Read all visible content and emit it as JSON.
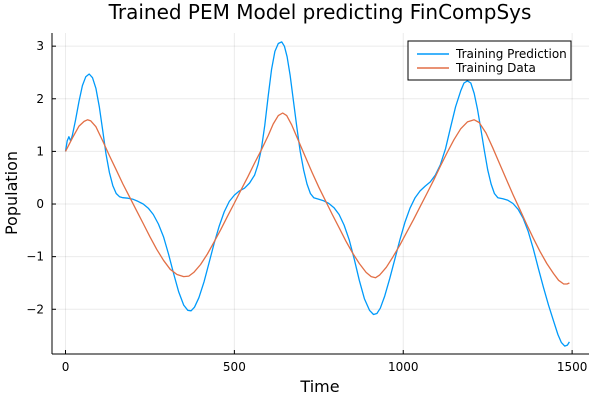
{
  "chart_data": {
    "type": "line",
    "title": "Trained PEM Model predicting FinCompSys",
    "xlabel": "Time",
    "ylabel": "Population",
    "xlim": [
      -40,
      1550
    ],
    "ylim": [
      -2.85,
      3.25
    ],
    "xticks": [
      0,
      500,
      1000,
      1500
    ],
    "xtick_labels": [
      "0",
      "500",
      "1000",
      "1500"
    ],
    "yticks": [
      -2,
      -1,
      0,
      1,
      2,
      3
    ],
    "ytick_labels": [
      "−2",
      "−1",
      "0",
      "1",
      "2",
      "3"
    ],
    "grid": true,
    "legend_position": "top-right",
    "series": [
      {
        "name": "Training Prediction",
        "color": "#009AFA",
        "points": [
          [
            0,
            1.0
          ],
          [
            5,
            1.2
          ],
          [
            10,
            1.28
          ],
          [
            15,
            1.2
          ],
          [
            20,
            1.3
          ],
          [
            30,
            1.6
          ],
          [
            40,
            1.95
          ],
          [
            50,
            2.25
          ],
          [
            60,
            2.42
          ],
          [
            70,
            2.47
          ],
          [
            80,
            2.4
          ],
          [
            90,
            2.2
          ],
          [
            100,
            1.85
          ],
          [
            110,
            1.4
          ],
          [
            120,
            0.95
          ],
          [
            130,
            0.6
          ],
          [
            140,
            0.35
          ],
          [
            150,
            0.2
          ],
          [
            160,
            0.14
          ],
          [
            170,
            0.12
          ],
          [
            185,
            0.11
          ],
          [
            200,
            0.09
          ],
          [
            215,
            0.05
          ],
          [
            230,
            0.0
          ],
          [
            245,
            -0.08
          ],
          [
            260,
            -0.2
          ],
          [
            275,
            -0.38
          ],
          [
            290,
            -0.62
          ],
          [
            305,
            -0.95
          ],
          [
            320,
            -1.32
          ],
          [
            335,
            -1.67
          ],
          [
            350,
            -1.92
          ],
          [
            362,
            -2.02
          ],
          [
            372,
            -2.03
          ],
          [
            382,
            -1.96
          ],
          [
            395,
            -1.78
          ],
          [
            410,
            -1.48
          ],
          [
            425,
            -1.12
          ],
          [
            440,
            -0.75
          ],
          [
            455,
            -0.42
          ],
          [
            470,
            -0.15
          ],
          [
            485,
            0.05
          ],
          [
            500,
            0.17
          ],
          [
            515,
            0.25
          ],
          [
            530,
            0.3
          ],
          [
            545,
            0.4
          ],
          [
            560,
            0.55
          ],
          [
            570,
            0.75
          ],
          [
            580,
            1.05
          ],
          [
            590,
            1.5
          ],
          [
            600,
            2.05
          ],
          [
            610,
            2.55
          ],
          [
            620,
            2.9
          ],
          [
            630,
            3.05
          ],
          [
            640,
            3.08
          ],
          [
            648,
            3.0
          ],
          [
            656,
            2.8
          ],
          [
            665,
            2.45
          ],
          [
            675,
            1.95
          ],
          [
            685,
            1.45
          ],
          [
            695,
            1.0
          ],
          [
            705,
            0.65
          ],
          [
            715,
            0.38
          ],
          [
            725,
            0.2
          ],
          [
            735,
            0.12
          ],
          [
            750,
            0.09
          ],
          [
            765,
            0.06
          ],
          [
            780,
            0.01
          ],
          [
            795,
            -0.07
          ],
          [
            810,
            -0.2
          ],
          [
            825,
            -0.4
          ],
          [
            840,
            -0.68
          ],
          [
            855,
            -1.05
          ],
          [
            870,
            -1.45
          ],
          [
            885,
            -1.8
          ],
          [
            900,
            -2.02
          ],
          [
            912,
            -2.1
          ],
          [
            922,
            -2.08
          ],
          [
            932,
            -1.98
          ],
          [
            945,
            -1.75
          ],
          [
            960,
            -1.42
          ],
          [
            975,
            -1.05
          ],
          [
            990,
            -0.68
          ],
          [
            1005,
            -0.35
          ],
          [
            1020,
            -0.08
          ],
          [
            1035,
            0.12
          ],
          [
            1050,
            0.25
          ],
          [
            1065,
            0.34
          ],
          [
            1080,
            0.42
          ],
          [
            1095,
            0.55
          ],
          [
            1110,
            0.75
          ],
          [
            1125,
            1.05
          ],
          [
            1140,
            1.45
          ],
          [
            1155,
            1.85
          ],
          [
            1170,
            2.15
          ],
          [
            1180,
            2.3
          ],
          [
            1190,
            2.34
          ],
          [
            1200,
            2.3
          ],
          [
            1210,
            2.1
          ],
          [
            1220,
            1.8
          ],
          [
            1230,
            1.42
          ],
          [
            1240,
            1.02
          ],
          [
            1250,
            0.65
          ],
          [
            1260,
            0.38
          ],
          [
            1270,
            0.2
          ],
          [
            1280,
            0.12
          ],
          [
            1295,
            0.1
          ],
          [
            1310,
            0.07
          ],
          [
            1325,
            0.01
          ],
          [
            1340,
            -0.1
          ],
          [
            1355,
            -0.27
          ],
          [
            1370,
            -0.52
          ],
          [
            1385,
            -0.85
          ],
          [
            1400,
            -1.22
          ],
          [
            1415,
            -1.58
          ],
          [
            1430,
            -1.92
          ],
          [
            1445,
            -2.22
          ],
          [
            1458,
            -2.48
          ],
          [
            1468,
            -2.63
          ],
          [
            1478,
            -2.7
          ],
          [
            1486,
            -2.68
          ],
          [
            1492,
            -2.62
          ]
        ]
      },
      {
        "name": "Training Data",
        "color": "#E26F46",
        "points": [
          [
            0,
            1.0
          ],
          [
            20,
            1.25
          ],
          [
            40,
            1.48
          ],
          [
            55,
            1.57
          ],
          [
            65,
            1.6
          ],
          [
            75,
            1.58
          ],
          [
            90,
            1.47
          ],
          [
            110,
            1.2
          ],
          [
            130,
            0.92
          ],
          [
            150,
            0.65
          ],
          [
            170,
            0.38
          ],
          [
            190,
            0.13
          ],
          [
            210,
            -0.12
          ],
          [
            230,
            -0.37
          ],
          [
            250,
            -0.62
          ],
          [
            270,
            -0.86
          ],
          [
            290,
            -1.07
          ],
          [
            310,
            -1.24
          ],
          [
            330,
            -1.34
          ],
          [
            350,
            -1.38
          ],
          [
            365,
            -1.37
          ],
          [
            380,
            -1.3
          ],
          [
            400,
            -1.15
          ],
          [
            420,
            -0.95
          ],
          [
            440,
            -0.72
          ],
          [
            460,
            -0.48
          ],
          [
            480,
            -0.23
          ],
          [
            500,
            0.02
          ],
          [
            520,
            0.27
          ],
          [
            540,
            0.52
          ],
          [
            560,
            0.78
          ],
          [
            580,
            1.03
          ],
          [
            600,
            1.3
          ],
          [
            615,
            1.52
          ],
          [
            630,
            1.68
          ],
          [
            643,
            1.73
          ],
          [
            655,
            1.68
          ],
          [
            670,
            1.5
          ],
          [
            690,
            1.2
          ],
          [
            710,
            0.9
          ],
          [
            730,
            0.6
          ],
          [
            750,
            0.32
          ],
          [
            770,
            0.06
          ],
          [
            790,
            -0.2
          ],
          [
            810,
            -0.45
          ],
          [
            830,
            -0.7
          ],
          [
            850,
            -0.93
          ],
          [
            870,
            -1.13
          ],
          [
            890,
            -1.3
          ],
          [
            905,
            -1.38
          ],
          [
            918,
            -1.4
          ],
          [
            930,
            -1.35
          ],
          [
            950,
            -1.2
          ],
          [
            970,
            -1.0
          ],
          [
            990,
            -0.78
          ],
          [
            1010,
            -0.54
          ],
          [
            1030,
            -0.3
          ],
          [
            1050,
            -0.05
          ],
          [
            1070,
            0.2
          ],
          [
            1090,
            0.45
          ],
          [
            1110,
            0.72
          ],
          [
            1130,
            0.98
          ],
          [
            1150,
            1.22
          ],
          [
            1170,
            1.43
          ],
          [
            1190,
            1.56
          ],
          [
            1210,
            1.6
          ],
          [
            1225,
            1.55
          ],
          [
            1245,
            1.35
          ],
          [
            1265,
            1.07
          ],
          [
            1285,
            0.77
          ],
          [
            1305,
            0.47
          ],
          [
            1325,
            0.18
          ],
          [
            1345,
            -0.1
          ],
          [
            1365,
            -0.38
          ],
          [
            1385,
            -0.65
          ],
          [
            1405,
            -0.9
          ],
          [
            1425,
            -1.13
          ],
          [
            1445,
            -1.32
          ],
          [
            1460,
            -1.45
          ],
          [
            1475,
            -1.52
          ],
          [
            1485,
            -1.52
          ],
          [
            1492,
            -1.5
          ]
        ]
      }
    ]
  }
}
